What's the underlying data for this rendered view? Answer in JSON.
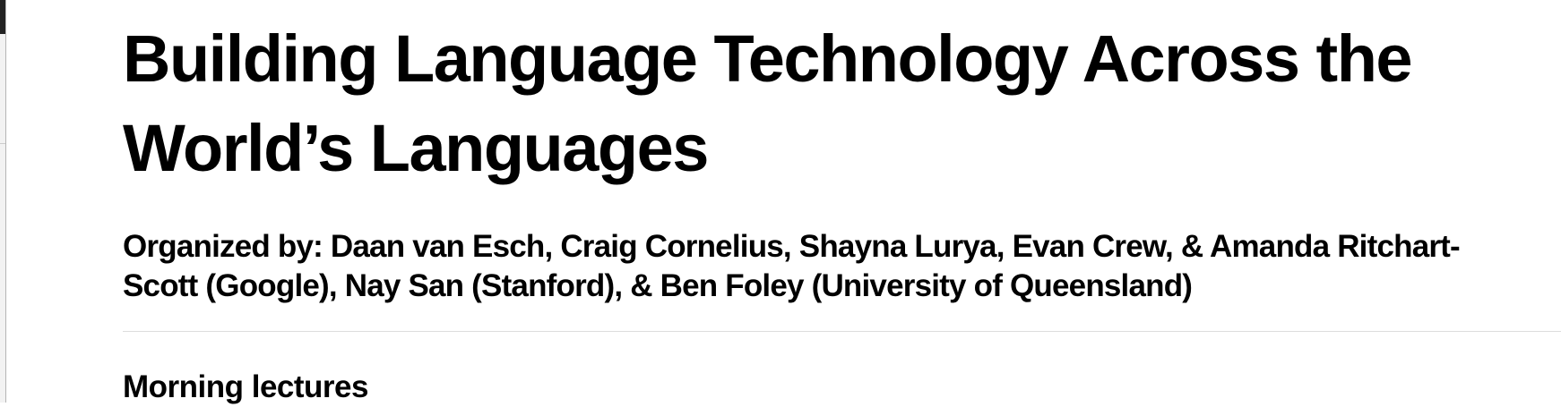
{
  "header": {
    "title": "Building Language Technology Across the World’s Languages",
    "organizers": "Organized by: Daan van Esch, Craig Cornelius, Shayna Lurya, Evan Crew, & Amanda Ritchart-Scott (Google), Nay San (Stanford), & Ben Foley (University of Queensland)"
  },
  "section": {
    "heading": "Morning lectures"
  }
}
